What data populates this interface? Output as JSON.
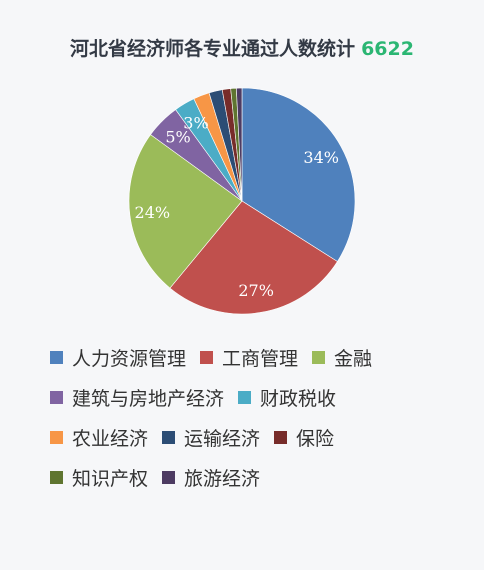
{
  "header": {
    "title": "河北省经济师各专业通过人数统计",
    "total": "6622"
  },
  "colors": {
    "title_text": "#333a45",
    "total_text": "#2bb673",
    "background": "#f6f7f9"
  },
  "chart_data": {
    "type": "pie",
    "title": "河北省经济师各专业通过人数统计",
    "total": 6622,
    "categories": [
      "人力资源管理",
      "工商管理",
      "金融",
      "建筑与房地产经济",
      "财政税收",
      "农业经济",
      "运输经济",
      "保险",
      "知识产权",
      "旅游经济"
    ],
    "values": [
      34,
      27,
      24,
      5,
      3,
      2.3,
      1.9,
      1.2,
      0.8,
      0.8
    ],
    "unit": "%",
    "shown_labels": [
      "34%",
      "27%",
      "24%",
      "5%",
      "3%",
      "",
      "",
      "",
      "",
      ""
    ],
    "colors": [
      "#4f81bd",
      "#c0504d",
      "#9bbb59",
      "#8064a2",
      "#4bacc6",
      "#f79646",
      "#2c4d75",
      "#772c2a",
      "#5f7530",
      "#4d3b62"
    ],
    "legend_position": "bottom"
  }
}
